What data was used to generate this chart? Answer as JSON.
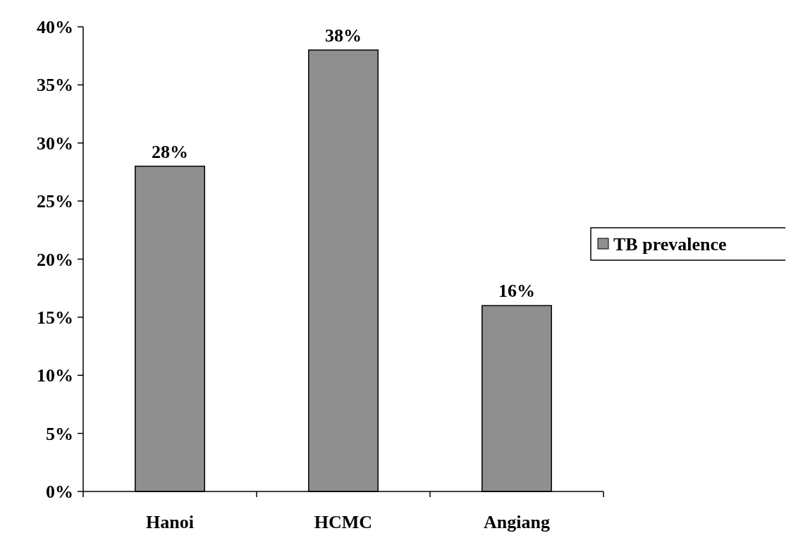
{
  "chart_data": {
    "type": "bar",
    "categories": [
      "Hanoi",
      "HCMC",
      "Angiang"
    ],
    "series": [
      {
        "name": "TB prevalence",
        "color": "#8f8f8f",
        "values": [
          28,
          38,
          16
        ],
        "value_labels": [
          "28%",
          "38%",
          "16%"
        ]
      }
    ],
    "ylim": [
      0,
      40
    ],
    "yticks": [
      {
        "value": 0,
        "label": "0%"
      },
      {
        "value": 5,
        "label": "5%"
      },
      {
        "value": 10,
        "label": "10%"
      },
      {
        "value": 15,
        "label": "15%"
      },
      {
        "value": 20,
        "label": "20%"
      },
      {
        "value": 25,
        "label": "25%"
      },
      {
        "value": 30,
        "label": "30%"
      },
      {
        "value": 35,
        "label": "35%"
      },
      {
        "value": 40,
        "label": "40%"
      }
    ],
    "legend": "right",
    "grid": false
  }
}
